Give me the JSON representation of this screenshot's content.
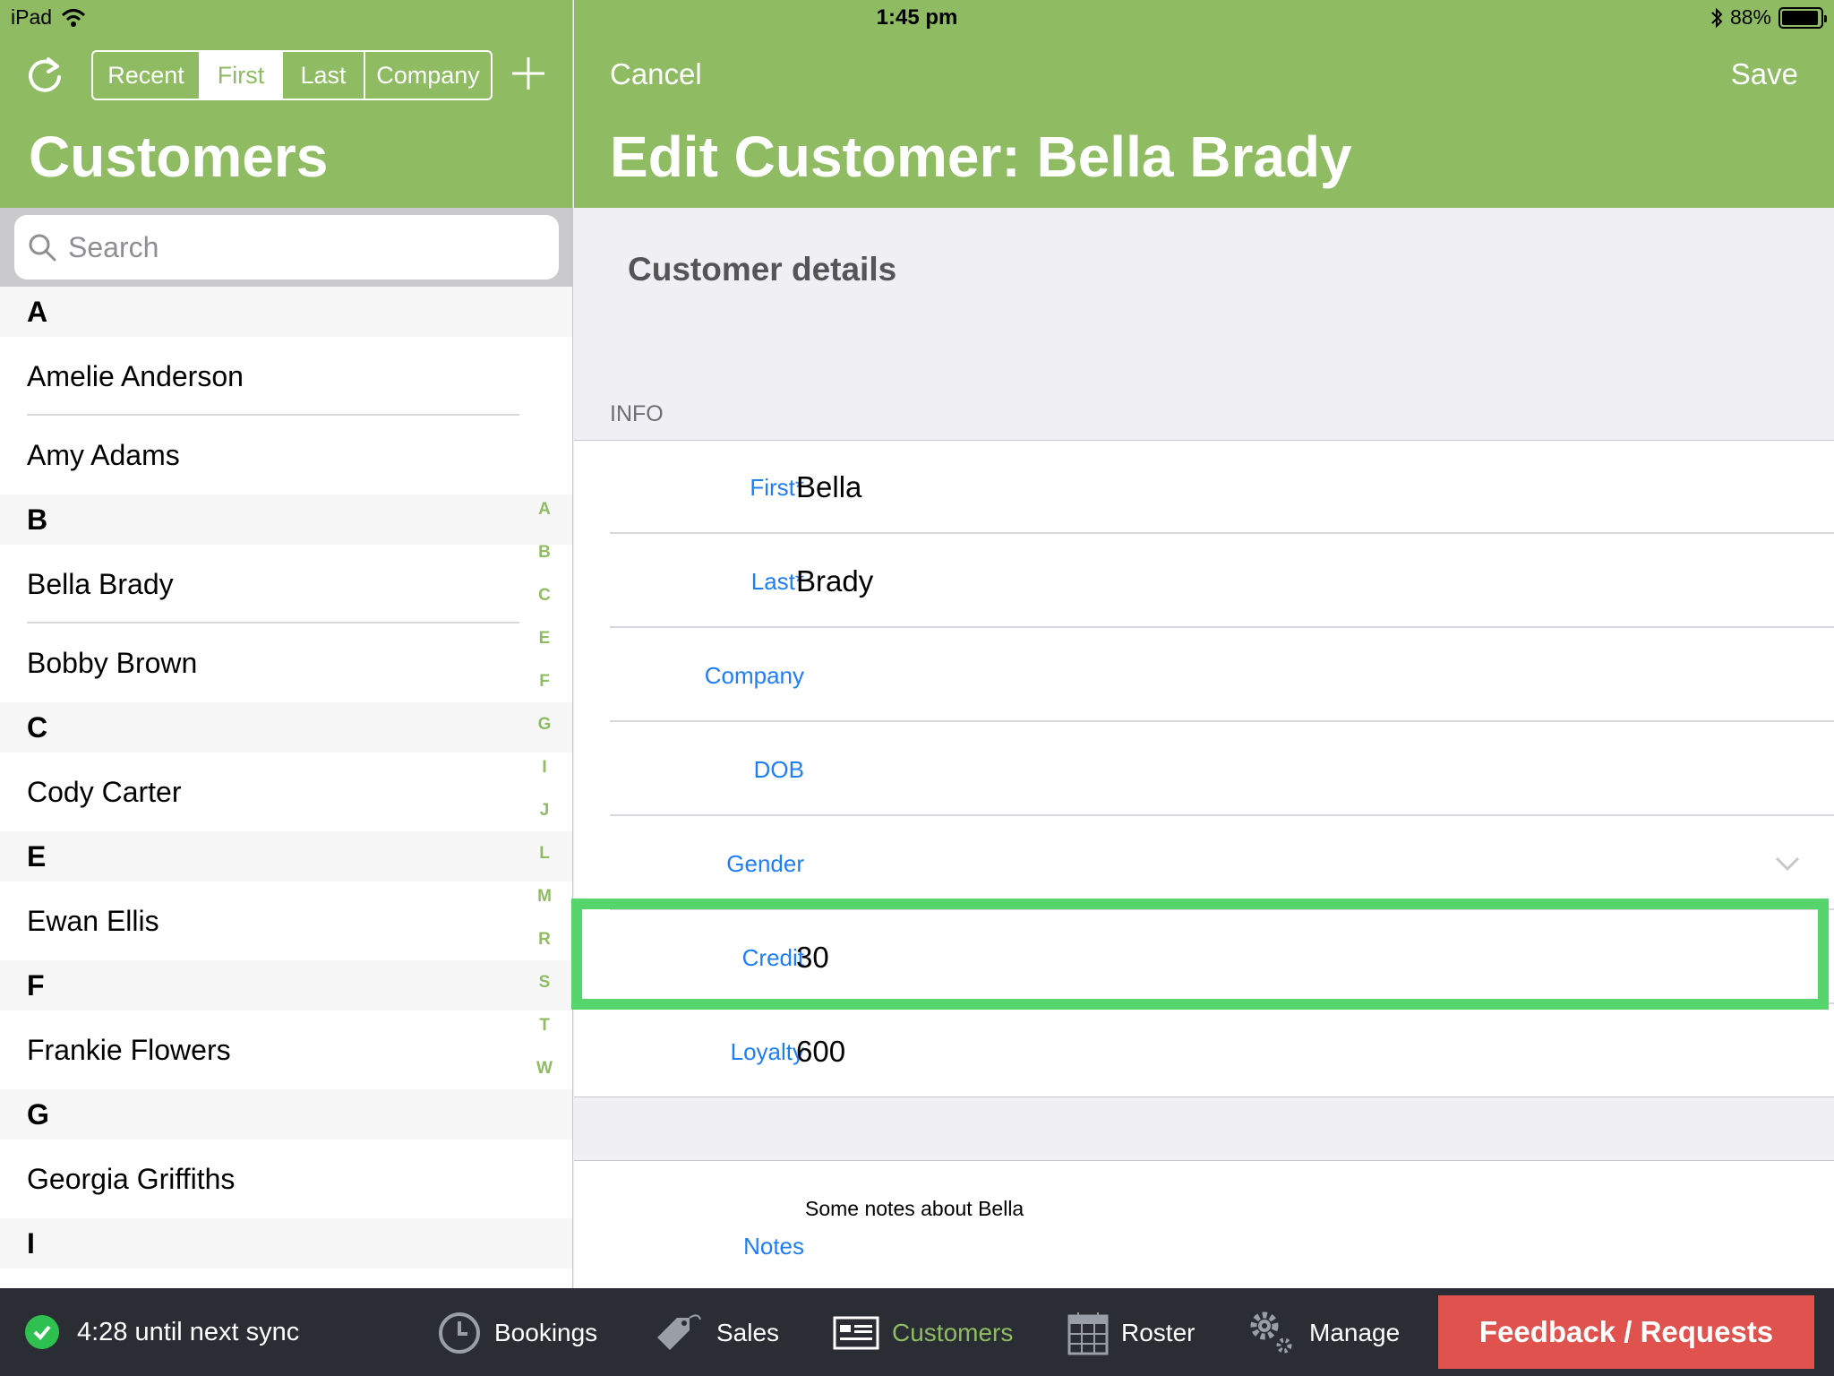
{
  "status_bar": {
    "device": "iPad",
    "time": "1:45 pm",
    "battery": "88%"
  },
  "left": {
    "segments": [
      {
        "label": "Recent",
        "active": false
      },
      {
        "label": "First",
        "active": true
      },
      {
        "label": "Last",
        "active": false
      },
      {
        "label": "Company",
        "active": false
      }
    ],
    "title": "Customers",
    "search_placeholder": "Search",
    "sections": [
      {
        "letter": "A",
        "items": [
          "Amelie Anderson",
          "Amy Adams"
        ]
      },
      {
        "letter": "B",
        "items": [
          "Bella Brady",
          "Bobby Brown"
        ]
      },
      {
        "letter": "C",
        "items": [
          "Cody  Carter"
        ]
      },
      {
        "letter": "E",
        "items": [
          "Ewan Ellis"
        ]
      },
      {
        "letter": "F",
        "items": [
          "Frankie Flowers"
        ]
      },
      {
        "letter": "G",
        "items": [
          "Georgia Griffiths"
        ]
      },
      {
        "letter": "I",
        "items": []
      }
    ],
    "index_letters": [
      "A",
      "B",
      "C",
      "E",
      "F",
      "G",
      "I",
      "J",
      "L",
      "M",
      "R",
      "S",
      "T",
      "W"
    ]
  },
  "right": {
    "cancel_label": "Cancel",
    "save_label": "Save",
    "title": "Edit Customer: Bella Brady",
    "section_title": "Customer details",
    "info_header": "INFO",
    "fields": [
      {
        "label": "First*",
        "value": "Bella"
      },
      {
        "label": "Last*",
        "value": "Brady"
      },
      {
        "label": "Company",
        "value": ""
      },
      {
        "label": "DOB",
        "value": ""
      },
      {
        "label": "Gender",
        "value": ""
      },
      {
        "label": "Credit",
        "value": "30"
      },
      {
        "label": "Loyalty",
        "value": "600"
      }
    ],
    "notes_label": "Notes",
    "notes_value": "Some notes about Bella"
  },
  "tabbar": {
    "sync_text": "4:28 until next sync",
    "tabs": [
      {
        "label": "Bookings",
        "icon": "clock-icon"
      },
      {
        "label": "Sales",
        "icon": "tag-icon"
      },
      {
        "label": "Customers",
        "icon": "customers-icon"
      },
      {
        "label": "Roster",
        "icon": "calendar-icon"
      },
      {
        "label": "Manage",
        "icon": "gear-icon"
      }
    ],
    "feedback_label": "Feedback / Requests"
  },
  "colors": {
    "accent": "#8fbc62",
    "link": "#1e7ef5",
    "highlight": "#55d56b",
    "feedback": "#e0524d",
    "tabbar": "#2a2d33"
  }
}
